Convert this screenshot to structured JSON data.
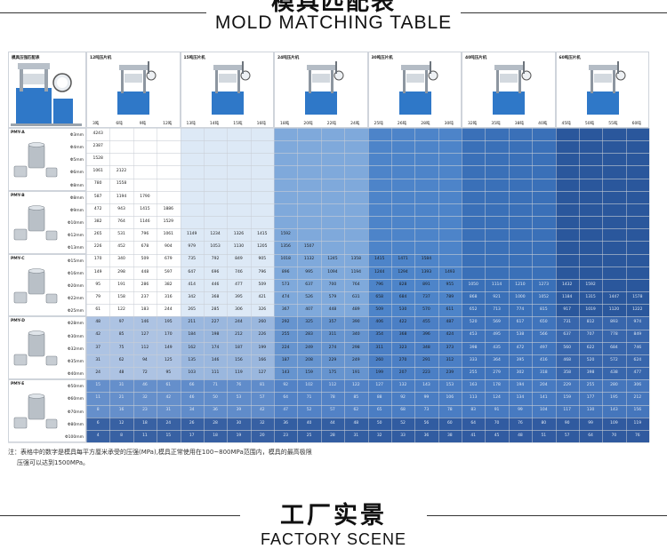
{
  "header": {
    "title_cn": "模具匹配表",
    "title_en": "MOLD MATCHING TABLE"
  },
  "table": {
    "corner_label": "模具压强匹配表",
    "presses": [
      {
        "label": "12吨压片机",
        "tonnages": [
          "3吨",
          "6吨",
          "9吨",
          "12吨"
        ]
      },
      {
        "label": "15吨压片机",
        "tonnages": [
          "13吨",
          "14吨",
          "15吨",
          "16吨"
        ]
      },
      {
        "label": "24吨压片机",
        "tonnages": [
          "18吨",
          "20吨",
          "22吨",
          "24吨"
        ]
      },
      {
        "label": "30吨压片机",
        "tonnages": [
          "25吨",
          "26吨",
          "28吨",
          "30吨"
        ]
      },
      {
        "label": "40吨压片机",
        "tonnages": [
          "32吨",
          "35吨",
          "38吨",
          "40吨"
        ]
      },
      {
        "label": "60吨压片机",
        "tonnages": [
          "45吨",
          "50吨",
          "55吨",
          "60吨"
        ]
      }
    ],
    "molds": [
      {
        "label": "PMY-A",
        "diameters": [
          "Φ3mm",
          "Φ4mm",
          "Φ5mm",
          "Φ6mm",
          "Φ8mm"
        ]
      },
      {
        "label": "PMY-B",
        "diameters": [
          "Φ8mm",
          "Φ9mm",
          "Φ10mm",
          "Φ12mm",
          "Φ13mm"
        ]
      },
      {
        "label": "PMY-C",
        "diameters": [
          "Φ15mm",
          "Φ16mm",
          "Φ20mm",
          "Φ22mm",
          "Φ25mm"
        ]
      },
      {
        "label": "PMY-D",
        "diameters": [
          "Φ28mm",
          "Φ30mm",
          "Φ32mm",
          "Φ35mm",
          "Φ40mm"
        ]
      },
      {
        "label": "PMY-E",
        "diameters": [
          "Φ50mm",
          "Φ60mm",
          "Φ70mm",
          "Φ80mm",
          "Φ100mm"
        ]
      }
    ],
    "rows": [
      [
        "4243"
      ],
      [
        "2387"
      ],
      [
        "1528"
      ],
      [
        "1061",
        "2122"
      ],
      [
        "780",
        "1558"
      ],
      [
        "587",
        "1194",
        "1790"
      ],
      [
        "472",
        "943",
        "1415",
        "1886"
      ],
      [
        "382",
        "764",
        "1146",
        "1529"
      ],
      [
        "265",
        "531",
        "796",
        "1061",
        "1149",
        "1234",
        "1326",
        "1415",
        "1592"
      ],
      [
        "226",
        "452",
        "678",
        "904",
        "979",
        "1053",
        "1130",
        "1205",
        "1356",
        "1507"
      ],
      [
        "170",
        "340",
        "509",
        "679",
        "735",
        "792",
        "849",
        "905",
        "1018",
        "1132",
        "1245",
        "1358",
        "1415",
        "1471",
        "1584"
      ],
      [
        "149",
        "298",
        "448",
        "597",
        "647",
        "696",
        "746",
        "796",
        "896",
        "995",
        "1094",
        "1194",
        "1244",
        "1294",
        "1393",
        "1493"
      ],
      [
        "95",
        "191",
        "286",
        "382",
        "414",
        "446",
        "477",
        "509",
        "573",
        "637",
        "700",
        "764",
        "796",
        "828",
        "891",
        "955",
        "1050",
        "1114",
        "1210",
        "1273",
        "1432",
        "1592"
      ],
      [
        "79",
        "158",
        "237",
        "316",
        "342",
        "368",
        "395",
        "421",
        "474",
        "526",
        "579",
        "631",
        "658",
        "684",
        "737",
        "789",
        "868",
        "921",
        "1000",
        "1052",
        "1184",
        "1315",
        "1447",
        "1578"
      ],
      [
        "61",
        "122",
        "183",
        "244",
        "265",
        "285",
        "306",
        "326",
        "367",
        "407",
        "448",
        "489",
        "509",
        "530",
        "570",
        "611",
        "652",
        "713",
        "774",
        "815",
        "917",
        "1019",
        "1120",
        "1222"
      ],
      [
        "48",
        "97",
        "146",
        "195",
        "211",
        "227",
        "244",
        "260",
        "292",
        "325",
        "357",
        "390",
        "406",
        "422",
        "455",
        "487",
        "520",
        "569",
        "617",
        "650",
        "731",
        "812",
        "893",
        "974"
      ],
      [
        "42",
        "85",
        "127",
        "170",
        "184",
        "198",
        "212",
        "226",
        "255",
        "283",
        "311",
        "340",
        "354",
        "368",
        "396",
        "424",
        "453",
        "495",
        "538",
        "566",
        "637",
        "707",
        "778",
        "849"
      ],
      [
        "37",
        "75",
        "112",
        "149",
        "162",
        "174",
        "187",
        "199",
        "224",
        "249",
        "274",
        "298",
        "311",
        "323",
        "348",
        "373",
        "398",
        "435",
        "472",
        "497",
        "560",
        "622",
        "684",
        "746"
      ],
      [
        "31",
        "62",
        "94",
        "125",
        "135",
        "146",
        "156",
        "166",
        "187",
        "208",
        "229",
        "249",
        "260",
        "270",
        "291",
        "312",
        "333",
        "364",
        "395",
        "416",
        "468",
        "520",
        "572",
        "624"
      ],
      [
        "24",
        "48",
        "72",
        "95",
        "103",
        "111",
        "119",
        "127",
        "143",
        "159",
        "175",
        "191",
        "199",
        "207",
        "223",
        "239",
        "255",
        "279",
        "302",
        "318",
        "358",
        "398",
        "438",
        "477"
      ],
      [
        "15",
        "31",
        "46",
        "61",
        "66",
        "71",
        "76",
        "81",
        "92",
        "102",
        "112",
        "122",
        "127",
        "132",
        "143",
        "153",
        "163",
        "178",
        "194",
        "204",
        "229",
        "255",
        "280",
        "306"
      ],
      [
        "11",
        "21",
        "32",
        "42",
        "46",
        "50",
        "53",
        "57",
        "64",
        "71",
        "78",
        "85",
        "88",
        "92",
        "99",
        "106",
        "113",
        "124",
        "134",
        "141",
        "159",
        "177",
        "195",
        "212"
      ],
      [
        "8",
        "16",
        "23",
        "31",
        "34",
        "36",
        "39",
        "42",
        "47",
        "52",
        "57",
        "62",
        "65",
        "68",
        "73",
        "78",
        "83",
        "91",
        "99",
        "104",
        "117",
        "130",
        "143",
        "156"
      ],
      [
        "6",
        "12",
        "18",
        "24",
        "26",
        "28",
        "30",
        "32",
        "36",
        "40",
        "44",
        "48",
        "50",
        "52",
        "56",
        "60",
        "64",
        "70",
        "76",
        "80",
        "90",
        "99",
        "109",
        "119"
      ],
      [
        "4",
        "8",
        "11",
        "15",
        "17",
        "18",
        "19",
        "20",
        "23",
        "25",
        "28",
        "31",
        "32",
        "33",
        "36",
        "38",
        "41",
        "45",
        "48",
        "51",
        "57",
        "64",
        "70",
        "76"
      ]
    ],
    "colors": {
      "band1": "#ffffff",
      "band2": "#dde9f6",
      "band3": "#7fa9db",
      "band4": "#4d84c9",
      "band5": "#3a70b8",
      "band6": "#2a579c",
      "overlay_mid": "#4a7bc2",
      "overlay_dark": "#2a5296",
      "press_blue": "#2f78c8"
    }
  },
  "note": {
    "line1": "注：表格中的数字是模具每平方厘米承受的压强(MPa),模具正常使用在100~800MPa范围内，模具的最高极限",
    "line2": "压强可以达到1500MPa。"
  },
  "footer": {
    "title_cn": "工厂实景",
    "title_en": "FACTORY SCENE"
  }
}
